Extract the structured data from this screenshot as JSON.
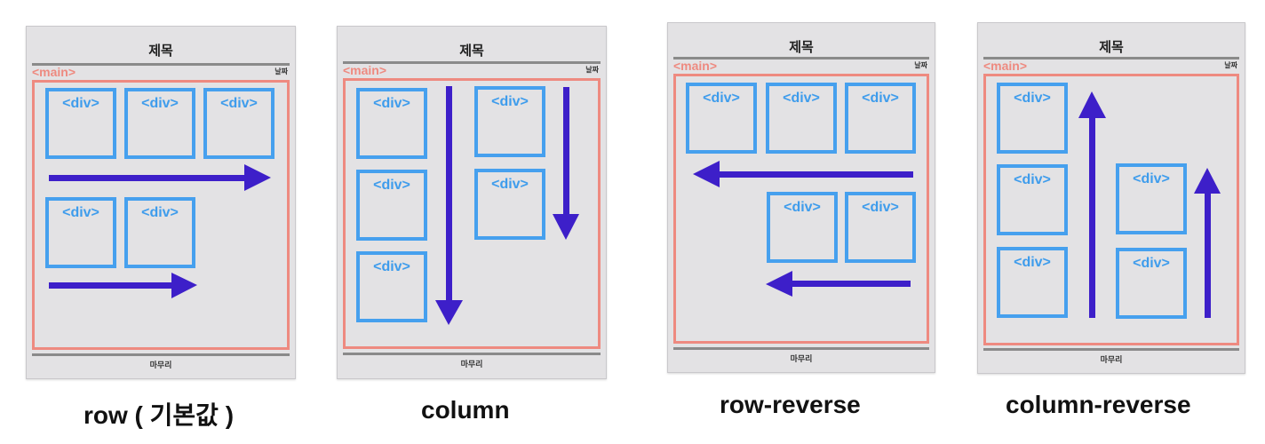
{
  "colors": {
    "panel_bg": "#e3e2e4",
    "main_border": "#ee8a80",
    "div_border": "#46a0ee",
    "arrow": "#3d1fc9"
  },
  "panels": [
    {
      "caption": "row ( 기본값 )",
      "title": "제목",
      "main_tag": "<main>",
      "date": "날짜",
      "footer": "마무리",
      "div_label": "<div>"
    },
    {
      "caption": "column",
      "title": "제목",
      "main_tag": "<main>",
      "date": "날짜",
      "footer": "마무리",
      "div_label": "<div>"
    },
    {
      "caption": "row-reverse",
      "title": "제목",
      "main_tag": "<main>",
      "date": "날짜",
      "footer": "마무리",
      "div_label": "<div>"
    },
    {
      "caption": "column-reverse",
      "title": "제목",
      "main_tag": "<main>",
      "date": "날짜",
      "footer": "마무리",
      "div_label": "<div>"
    }
  ]
}
